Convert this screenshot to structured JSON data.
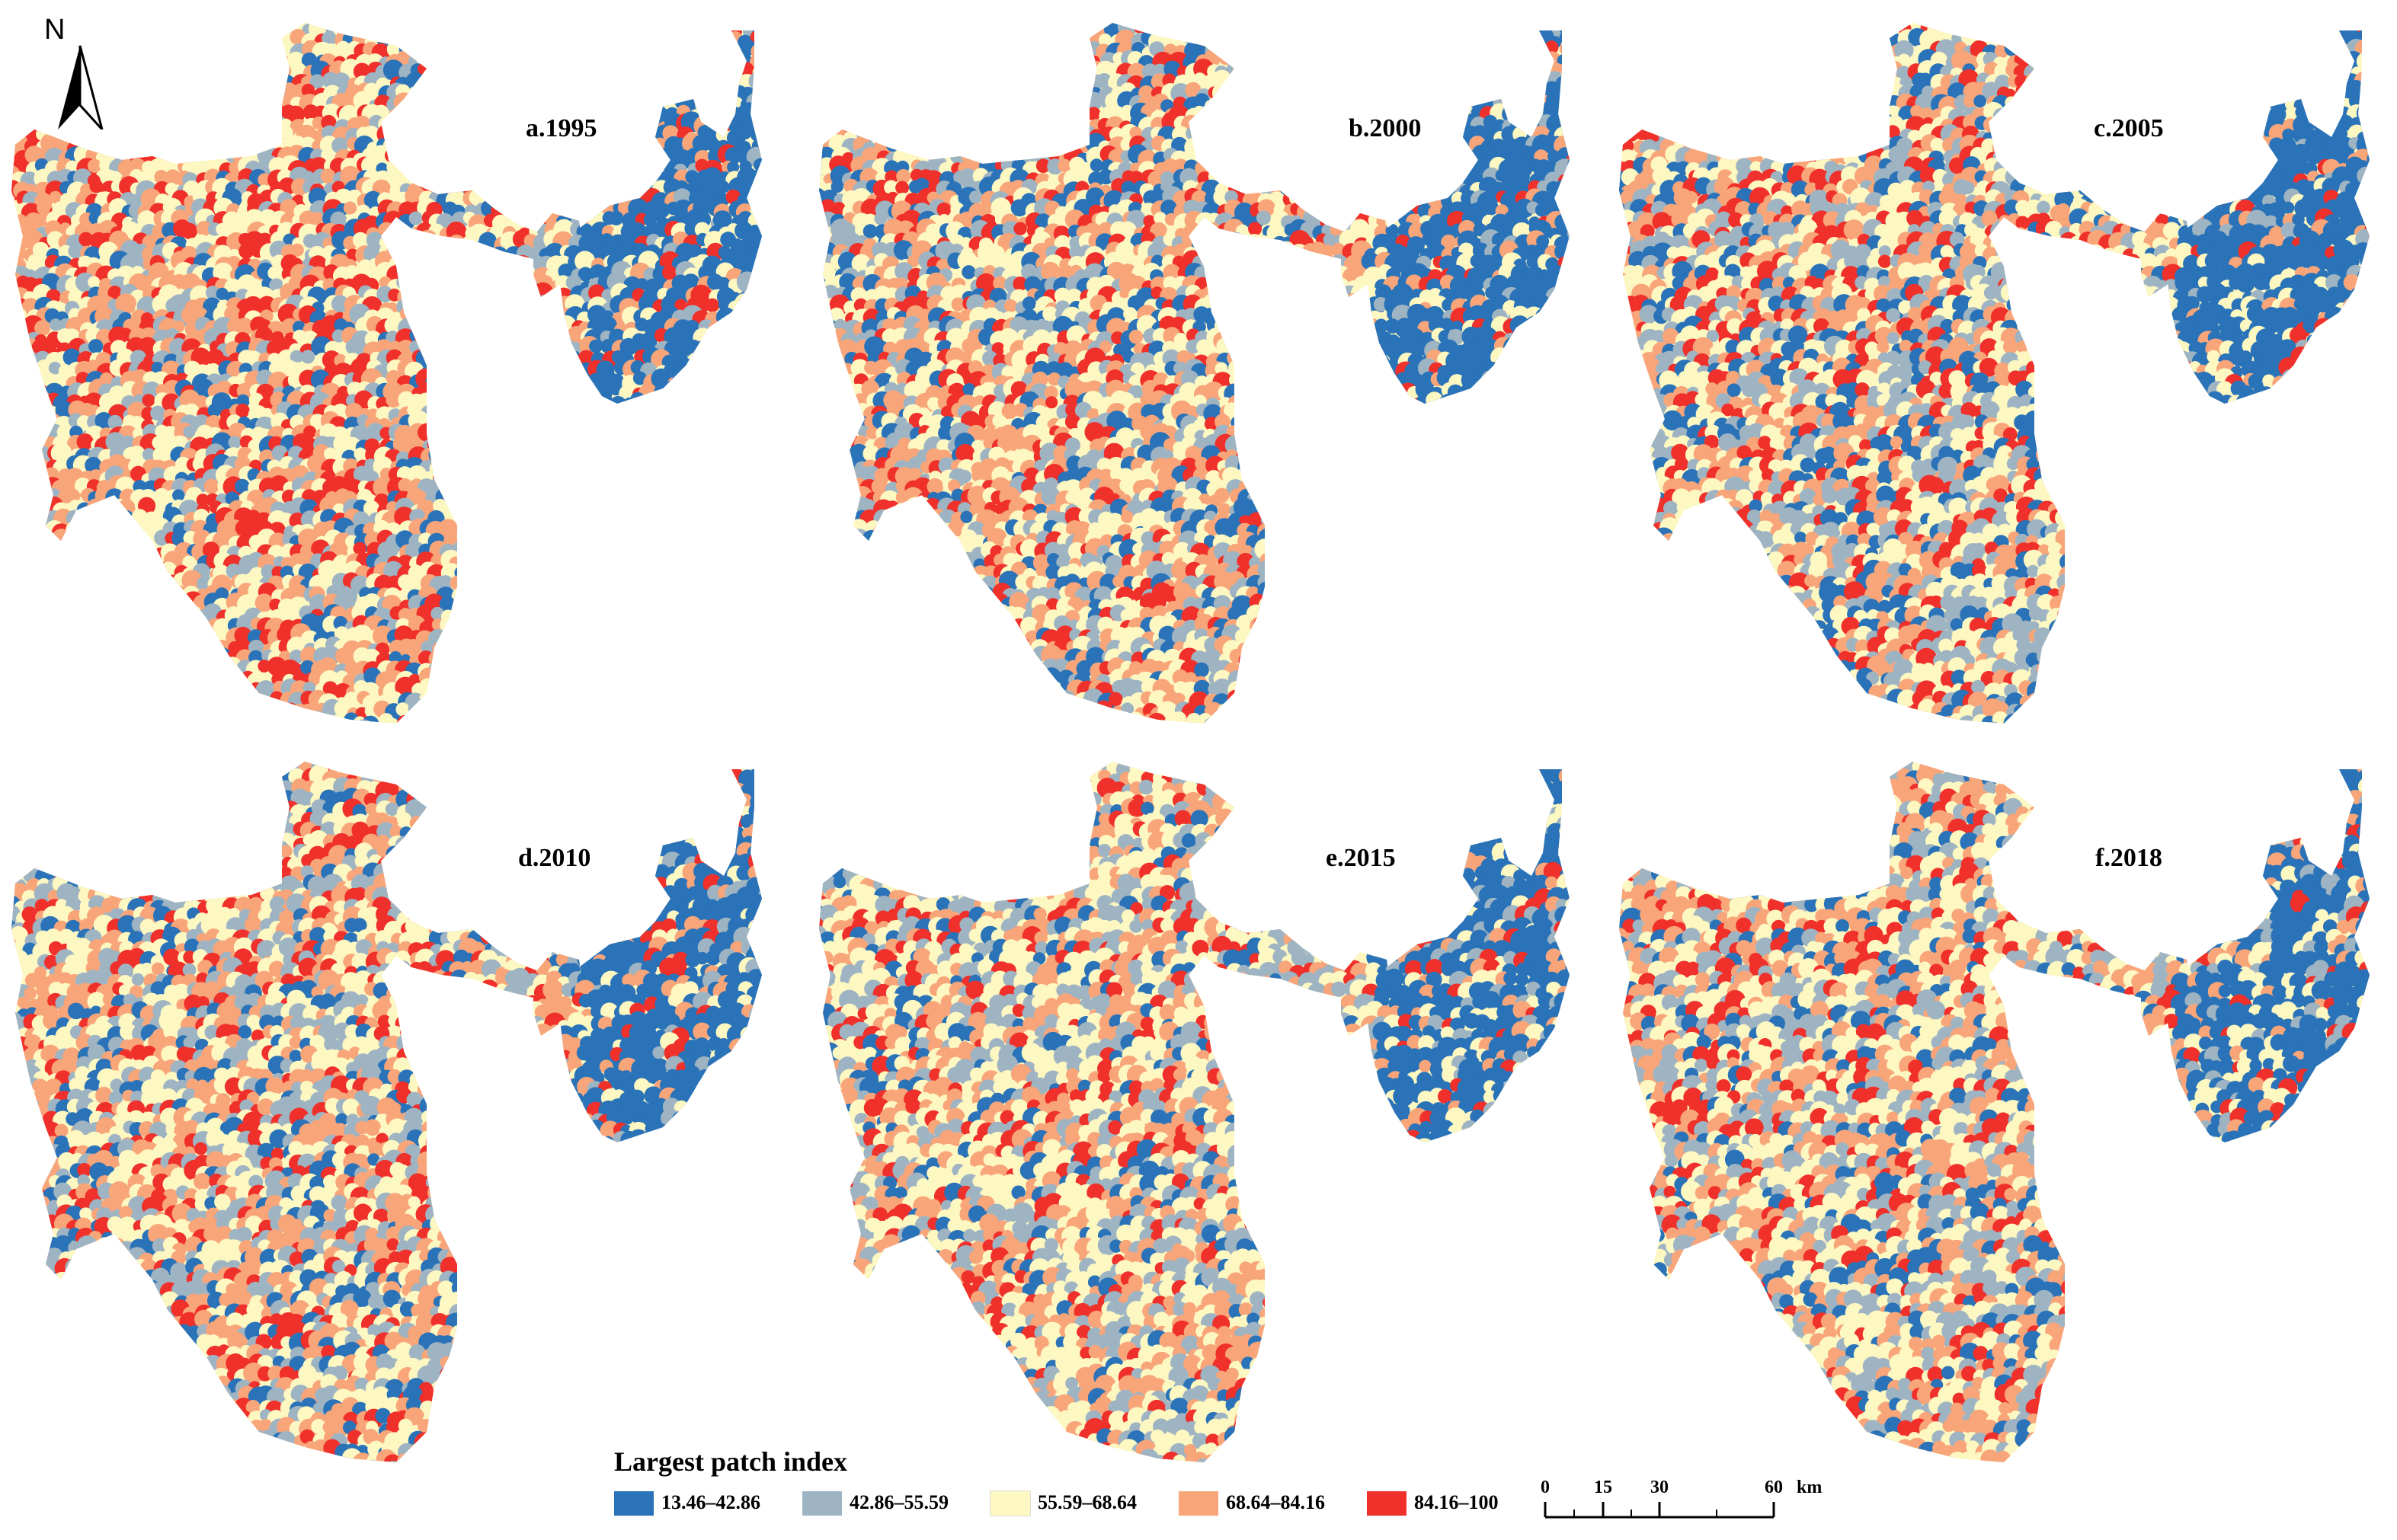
{
  "north_arrow": {
    "letter": "N"
  },
  "panels": [
    {
      "label": "a.1995",
      "year": 1995
    },
    {
      "label": "b.2000",
      "year": 2000
    },
    {
      "label": "c.2005",
      "year": 2005
    },
    {
      "label": "d.2010",
      "year": 2010
    },
    {
      "label": "e.2015",
      "year": 2015
    },
    {
      "label": "f.2018",
      "year": 2018
    }
  ],
  "legend": {
    "title": "Largest patch index",
    "classes": [
      {
        "range": "13.46–42.86",
        "color": "#2a73b8"
      },
      {
        "range": "42.86–55.59",
        "color": "#9fb4c2"
      },
      {
        "range": "55.59–68.64",
        "color": "#fdf7c2"
      },
      {
        "range": "68.64–84.16",
        "color": "#f8a57a"
      },
      {
        "range": "84.16–100",
        "color": "#f0302a"
      }
    ]
  },
  "scale_bar": {
    "ticks": [
      "0",
      "15",
      "30",
      "60"
    ],
    "unit": "km"
  }
}
